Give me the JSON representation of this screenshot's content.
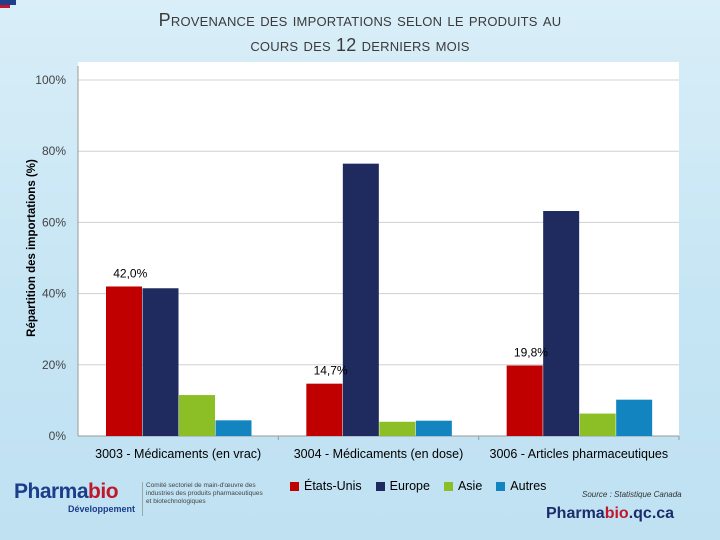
{
  "title_line1": "Provenance des importations selon le produits au",
  "title_line2": "cours des 12 derniers mois",
  "chart_data": {
    "type": "bar",
    "ylabel": "Répartition des importations (%)",
    "ylim": [
      0,
      100
    ],
    "yticks": [
      "0%",
      "20%",
      "40%",
      "60%",
      "80%",
      "100%"
    ],
    "categories": [
      "3003 - Médicaments (en vrac)",
      "3004 - Médicaments (en dose)",
      "3006 - Articles pharmaceutiques"
    ],
    "series": [
      {
        "name": "États-Unis",
        "color": "#c00000",
        "values": [
          42.0,
          14.7,
          19.8
        ]
      },
      {
        "name": "Europe",
        "color": "#1f2a5e",
        "values": [
          41.5,
          76.5,
          63.2
        ]
      },
      {
        "name": "Asie",
        "color": "#8cbf26",
        "values": [
          11.5,
          4.0,
          6.3
        ]
      },
      {
        "name": "Autres",
        "color": "#1284c0",
        "values": [
          4.4,
          4.3,
          10.2
        ]
      }
    ],
    "data_labels": [
      {
        "text": "42,0%",
        "category": 0,
        "series": 0
      },
      {
        "text": "14,7%",
        "category": 1,
        "series": 0
      },
      {
        "text": "19,8%",
        "category": 2,
        "series": 0
      }
    ],
    "legend": "bottom"
  },
  "source": "Source : Statistique Canada",
  "logo": {
    "brand_a": "Pharma",
    "brand_b": "bio",
    "subtitle": "Développement",
    "description": "Comité sectoriel de main-d'œuvre des industries des produits pharmaceutiques et biotechnologiques"
  },
  "site": {
    "a": "Pharma",
    "b": "bio",
    "c": ".qc.ca"
  }
}
